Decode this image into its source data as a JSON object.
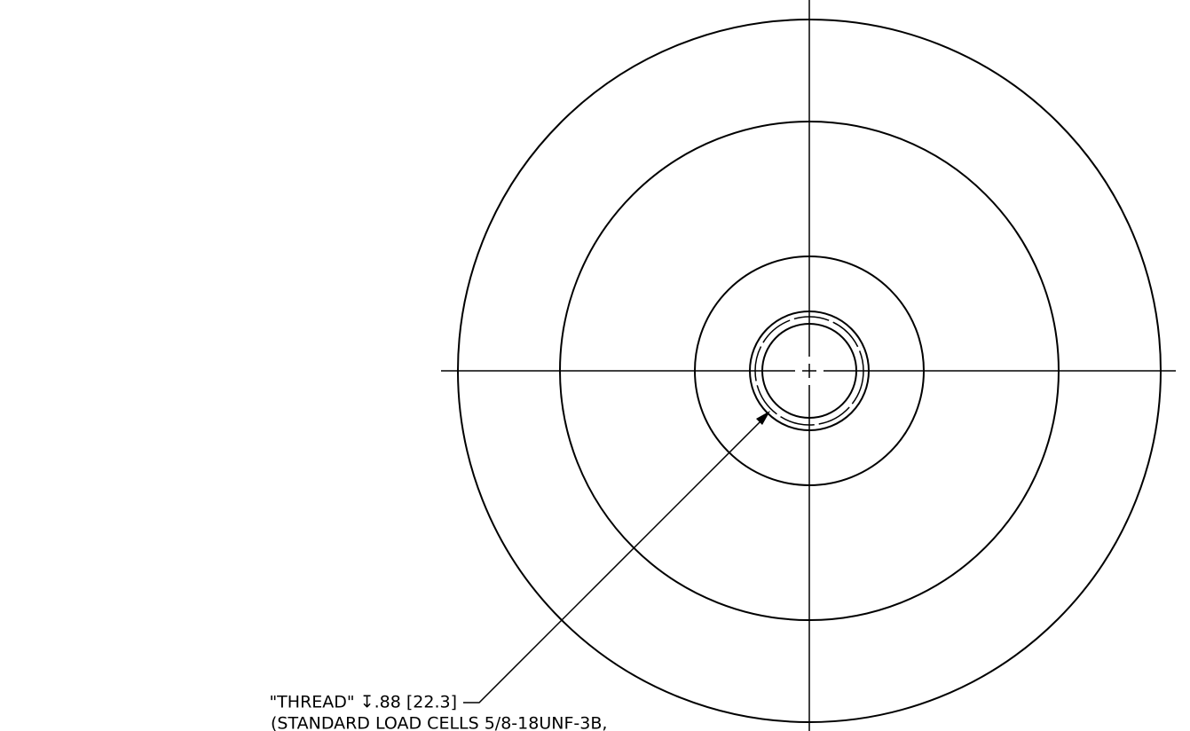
{
  "callout": {
    "line1": "\"THREAD\" ↧.88 [22.3]",
    "line2": "(STANDARD LOAD CELLS 5/8-18UNF-3B,"
  }
}
